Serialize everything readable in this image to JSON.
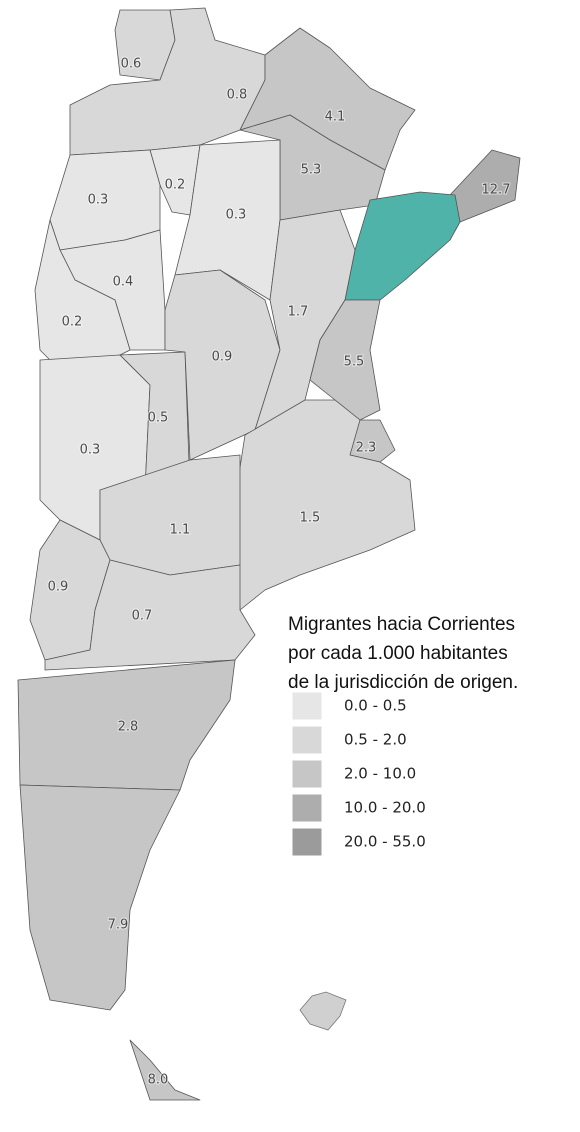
{
  "map": {
    "legend_title": [
      "Migrantes hacia Corrientes",
      "por cada 1.000 habitantes",
      "de la jurisdicción de origen."
    ],
    "legend": [
      {
        "label": "0.0 - 0.5",
        "min": 0,
        "max": 0.5,
        "color": "#e6e6e6"
      },
      {
        "label": "0.5 - 2.0",
        "min": 0.5,
        "max": 2,
        "color": "#d8d8d8"
      },
      {
        "label": "2.0 - 10.0",
        "min": 2,
        "max": 10,
        "color": "#c6c6c6"
      },
      {
        "label": "10.0 - 20.0",
        "min": 10,
        "max": 20,
        "color": "#adadad"
      },
      {
        "label": "20.0 - 55.0",
        "min": 20,
        "max": 55,
        "color": "#9b9b9b"
      }
    ],
    "highlight_color": "#4fb3a9",
    "regions": [
      {
        "value": 0.6
      },
      {
        "value": 0.8
      },
      {
        "value": 4.1
      },
      {
        "value": 5.3
      },
      {
        "value": 12.7
      },
      {
        "value": null
      },
      {
        "value": 0.2
      },
      {
        "value": 0.3
      },
      {
        "value": 0.3
      },
      {
        "value": 0.4
      },
      {
        "value": 0.2
      },
      {
        "value": 0.3
      },
      {
        "value": 0.5
      },
      {
        "value": 0.9
      },
      {
        "value": 1.7
      },
      {
        "value": 5.5
      },
      {
        "value": 2.3
      },
      {
        "value": 1.5
      },
      {
        "value": 1.1
      },
      {
        "value": 0.9
      },
      {
        "value": 0.7
      },
      {
        "value": 2.8
      },
      {
        "value": 7.9
      },
      {
        "value": 8,
        "label": "8.0"
      }
    ]
  }
}
